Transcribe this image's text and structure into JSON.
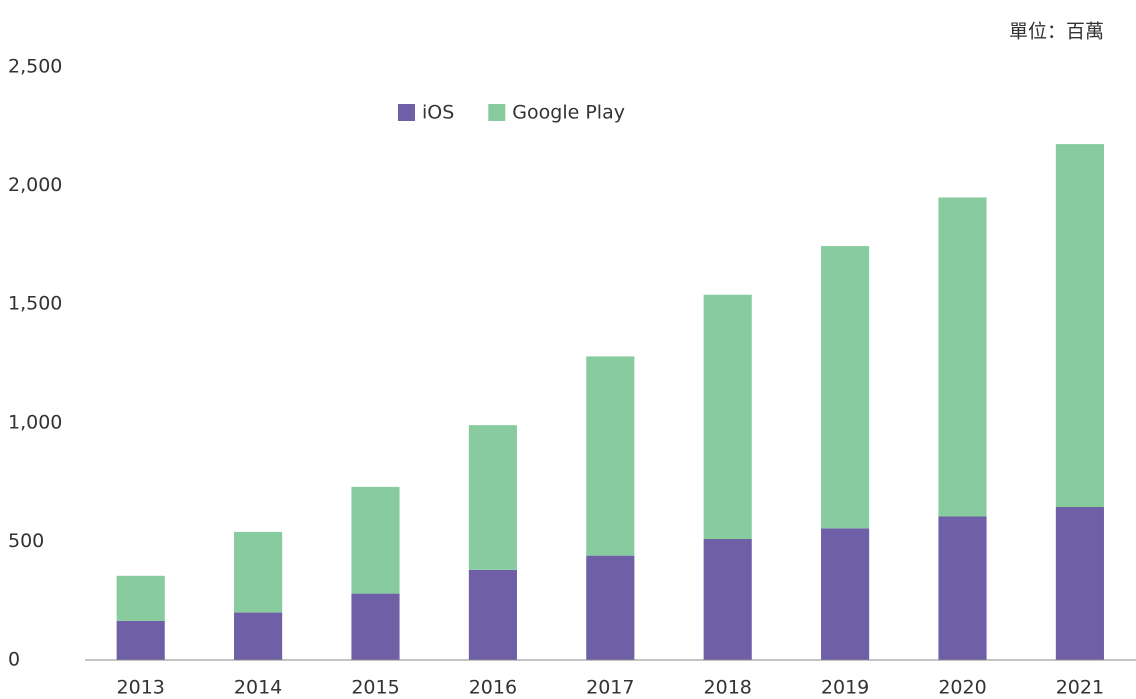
{
  "chart_data": {
    "type": "stacked-bar",
    "unit_label": "單位：百萬",
    "categories": [
      "2013",
      "2014",
      "2015",
      "2016",
      "2017",
      "2018",
      "2019",
      "2020",
      "2021"
    ],
    "series": [
      {
        "name": "iOS",
        "color": "#6e5fa7",
        "values": [
          165,
          200,
          280,
          380,
          440,
          510,
          555,
          605,
          645
        ]
      },
      {
        "name": "Google Play",
        "color": "#88cb9e",
        "values": [
          190,
          340,
          450,
          610,
          840,
          1030,
          1190,
          1345,
          1530
        ]
      }
    ],
    "ylim": [
      0,
      2500
    ],
    "yticks": [
      0,
      {
        "value": 500,
        "label": "500"
      },
      {
        "value": 1000,
        "label": "1,000"
      },
      {
        "value": 1500,
        "label": "1,500"
      },
      {
        "value": 2000,
        "label": "2,000"
      },
      {
        "value": 2500,
        "label": "2,500"
      }
    ],
    "legend": "top",
    "grid": false
  }
}
